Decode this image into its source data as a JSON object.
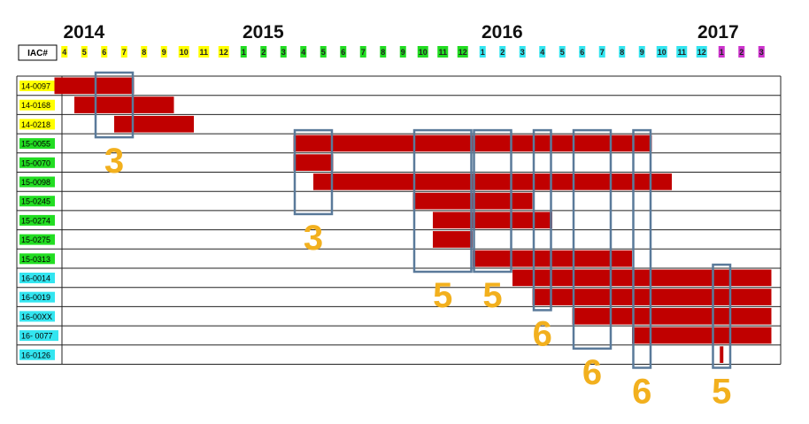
{
  "chart_data": {
    "type": "gantt",
    "column_header": "IAC#",
    "years": [
      {
        "label": "2014",
        "start_col": 0
      },
      {
        "label": "2015",
        "start_col": 9
      },
      {
        "label": "2016",
        "start_col": 21
      },
      {
        "label": "2017",
        "start_col": 33
      }
    ],
    "months": [
      {
        "label": "4",
        "year": "2014"
      },
      {
        "label": "5",
        "year": "2014"
      },
      {
        "label": "6",
        "year": "2014"
      },
      {
        "label": "7",
        "year": "2014"
      },
      {
        "label": "8",
        "year": "2014"
      },
      {
        "label": "9",
        "year": "2014"
      },
      {
        "label": "10",
        "year": "2014"
      },
      {
        "label": "11",
        "year": "2014"
      },
      {
        "label": "12",
        "year": "2014"
      },
      {
        "label": "1",
        "year": "2015"
      },
      {
        "label": "2",
        "year": "2015"
      },
      {
        "label": "3",
        "year": "2015"
      },
      {
        "label": "4",
        "year": "2015"
      },
      {
        "label": "5",
        "year": "2015"
      },
      {
        "label": "6",
        "year": "2015"
      },
      {
        "label": "7",
        "year": "2015"
      },
      {
        "label": "8",
        "year": "2015"
      },
      {
        "label": "9",
        "year": "2015"
      },
      {
        "label": "10",
        "year": "2015"
      },
      {
        "label": "11",
        "year": "2015"
      },
      {
        "label": "12",
        "year": "2015"
      },
      {
        "label": "1",
        "year": "2016"
      },
      {
        "label": "2",
        "year": "2016"
      },
      {
        "label": "3",
        "year": "2016"
      },
      {
        "label": "4",
        "year": "2016"
      },
      {
        "label": "5",
        "year": "2016"
      },
      {
        "label": "6",
        "year": "2016"
      },
      {
        "label": "7",
        "year": "2016"
      },
      {
        "label": "8",
        "year": "2016"
      },
      {
        "label": "9",
        "year": "2016"
      },
      {
        "label": "10",
        "year": "2016"
      },
      {
        "label": "11",
        "year": "2016"
      },
      {
        "label": "12",
        "year": "2016"
      },
      {
        "label": "1",
        "year": "2017"
      },
      {
        "label": "2",
        "year": "2017"
      },
      {
        "label": "3",
        "year": "2017"
      }
    ],
    "year_colors": {
      "2014": "#ffff00",
      "2015": "#22dd22",
      "2016": "#33e5f0",
      "2017": "#cc33cc"
    },
    "tasks": [
      {
        "id": "14-0097",
        "year": "2014",
        "start": "2014-04",
        "end": "2014-07"
      },
      {
        "id": "14-0168",
        "year": "2014",
        "start": "2014-05",
        "end": "2014-09"
      },
      {
        "id": "14-0218",
        "year": "2014",
        "start": "2014-07",
        "end": "2014-10"
      },
      {
        "id": "15-0055",
        "year": "2015",
        "start": "2015-04",
        "end": "2016-09"
      },
      {
        "id": "15-0070",
        "year": "2015",
        "start": "2015-04",
        "end": "2015-05"
      },
      {
        "id": "15-0098",
        "year": "2015",
        "start": "2015-05",
        "end": "2016-10"
      },
      {
        "id": "15-0245",
        "year": "2015",
        "start": "2015-10",
        "end": "2016-03"
      },
      {
        "id": "15-0274",
        "year": "2015",
        "start": "2015-11",
        "end": "2016-04"
      },
      {
        "id": "15-0275",
        "year": "2015",
        "start": "2015-11",
        "end": "2015-12"
      },
      {
        "id": "15-0313",
        "year": "2015",
        "start": "2016-01",
        "end": "2016-08"
      },
      {
        "id": "16-0014",
        "year": "2016",
        "start": "2016-03",
        "end": "2017-03"
      },
      {
        "id": "16-0019",
        "year": "2016",
        "start": "2016-04",
        "end": "2017-03"
      },
      {
        "id": "16-00XX",
        "year": "2016",
        "start": "2016-06",
        "end": "2017-03"
      },
      {
        "id": "16- 0077",
        "year": "2016",
        "start": "2016-09",
        "end": "2017-03"
      },
      {
        "id": "16-0126",
        "year": "2016",
        "start": "2017-01",
        "end": "2017-01"
      }
    ],
    "bar_color": "#c00000",
    "highlight_color": "#5a7a9a",
    "highlights": [
      {
        "start": "2014-06",
        "end": "2014-07",
        "first_row": "14-0097",
        "last_row": "14-0218",
        "count": "3"
      },
      {
        "start": "2015-04",
        "end": "2015-05",
        "first_row": "15-0055",
        "last_row": "15-0245",
        "count": "3"
      },
      {
        "start": "2015-10",
        "end": "2015-12",
        "first_row": "15-0055",
        "last_row": "15-0313",
        "count": "5"
      },
      {
        "start": "2016-01",
        "end": "2016-02",
        "first_row": "15-0055",
        "last_row": "15-0313",
        "count": "5"
      },
      {
        "start": "2016-04",
        "end": "2016-04",
        "first_row": "15-0055",
        "last_row": "16-0019",
        "count": "6"
      },
      {
        "start": "2016-06",
        "end": "2016-07",
        "first_row": "15-0055",
        "last_row": "16- 0077",
        "count": "6"
      },
      {
        "start": "2016-09",
        "end": "2016-09",
        "first_row": "15-0055",
        "last_row": "16-0126",
        "count": "6"
      },
      {
        "start": "2017-01",
        "end": "2017-01",
        "first_row": "16-0014",
        "last_row": "16-0126",
        "count": "5"
      }
    ],
    "grid": true,
    "legend": "none"
  }
}
